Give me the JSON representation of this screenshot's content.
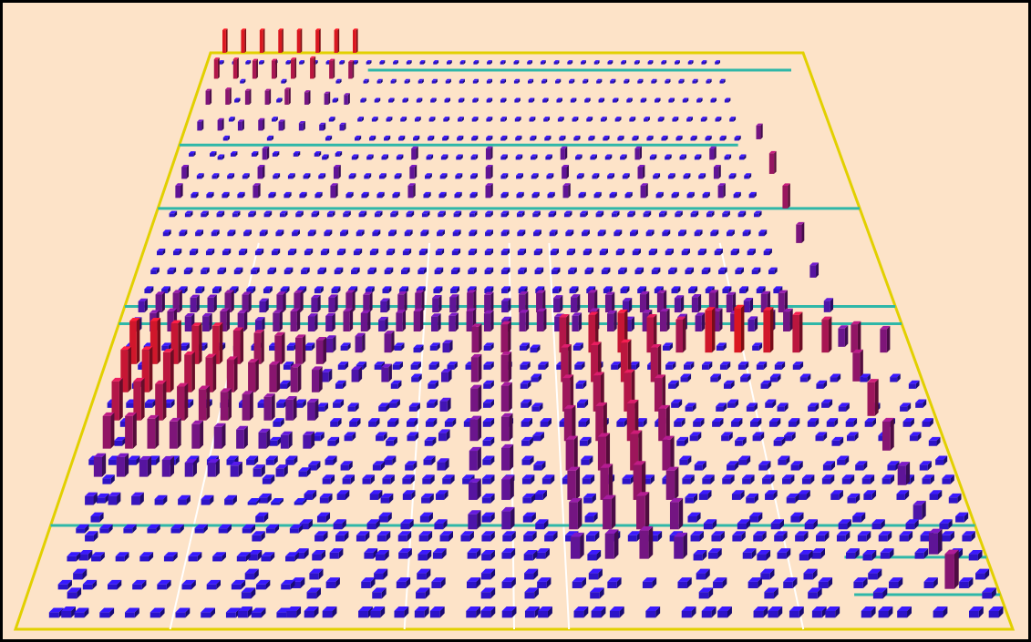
{
  "scene": {
    "background_color": "#FDE3C8",
    "frame_color": "#000000",
    "border_color": "#E2D000",
    "divider_color": "#FFFFFF",
    "separator_color": "#2FB7A8",
    "bar_low_color": "#1A14E6",
    "bar_high_color": "#F01818",
    "blocks": [
      {
        "name": "bottom-left-cluster",
        "columns": 10,
        "rows": 10,
        "heights": [
          [
            0.9,
            0.9,
            0.85,
            0.8,
            0.8,
            0.7,
            0.65,
            0.6,
            0.55,
            0.5
          ],
          [
            0.85,
            0.85,
            0.8,
            0.75,
            0.7,
            0.65,
            0.6,
            0.55,
            0.5,
            0.45
          ],
          [
            0.75,
            0.75,
            0.7,
            0.65,
            0.6,
            0.55,
            0.5,
            0.45,
            0.4,
            0.35
          ],
          [
            0.6,
            0.6,
            0.55,
            0.5,
            0.45,
            0.4,
            0.35,
            0.3,
            0.25,
            0.25
          ],
          [
            0.35,
            0.35,
            0.3,
            0.3,
            0.25,
            0.25,
            0.2,
            0.15,
            0.15,
            0.1
          ],
          [
            0.15,
            0.15,
            0.15,
            0.1,
            0.1,
            0.1,
            0.1,
            0.05,
            0.05,
            0.05
          ],
          [
            0.08,
            0.08,
            0.08,
            0.08,
            0.08,
            0.08,
            0.08,
            0.08,
            0.08,
            0.08
          ],
          [
            0.08,
            0.08,
            0.08,
            0.08,
            0.08,
            0.08,
            0.08,
            0.08,
            0.08,
            0.08
          ],
          [
            0.08,
            0.08,
            0.08,
            0.08,
            0.08,
            0.08,
            0.08,
            0.08,
            0.08,
            0.08
          ],
          [
            0.08,
            0.08,
            0.08,
            0.08,
            0.08,
            0.08,
            0.08,
            0.08,
            0.08,
            0.08
          ]
        ]
      },
      {
        "name": "bottom-middle-band",
        "columns": 20,
        "rows": 10,
        "heights": [
          [
            0.3,
            0.35,
            0.4,
            0.1,
            0.2,
            0.55,
            0.6,
            0.1,
            0.75,
            0.8,
            0.85,
            0.75,
            0.7,
            0.9,
            0.95,
            0.9,
            0.8,
            0.7,
            0.6,
            0.5
          ],
          [
            0.2,
            0.25,
            0.3,
            0.1,
            0.2,
            0.5,
            0.55,
            0.1,
            0.7,
            0.75,
            0.8,
            0.7,
            0.1,
            0.1,
            0.1,
            0.1,
            0.1,
            0.1,
            0.1,
            0.1
          ],
          [
            0.1,
            0.1,
            0.1,
            0.1,
            0.2,
            0.45,
            0.5,
            0.1,
            0.65,
            0.7,
            0.75,
            0.65,
            0.1,
            0.1,
            0.1,
            0.1,
            0.1,
            0.1,
            0.1,
            0.1
          ],
          [
            0.1,
            0.1,
            0.1,
            0.1,
            0.15,
            0.4,
            0.45,
            0.1,
            0.6,
            0.65,
            0.7,
            0.6,
            0.1,
            0.1,
            0.1,
            0.1,
            0.1,
            0.1,
            0.1,
            0.1
          ],
          [
            0.1,
            0.1,
            0.1,
            0.1,
            0.15,
            0.35,
            0.4,
            0.1,
            0.55,
            0.6,
            0.65,
            0.55,
            0.1,
            0.1,
            0.1,
            0.1,
            0.1,
            0.1,
            0.1,
            0.1
          ],
          [
            0.1,
            0.1,
            0.1,
            0.1,
            0.1,
            0.3,
            0.35,
            0.1,
            0.5,
            0.55,
            0.6,
            0.5,
            0.1,
            0.1,
            0.1,
            0.1,
            0.1,
            0.1,
            0.1,
            0.1
          ],
          [
            0.1,
            0.1,
            0.1,
            0.1,
            0.1,
            0.25,
            0.3,
            0.1,
            0.45,
            0.5,
            0.55,
            0.45,
            0.1,
            0.1,
            0.1,
            0.1,
            0.1,
            0.1,
            0.1,
            0.1
          ],
          [
            0.1,
            0.1,
            0.1,
            0.1,
            0.1,
            0.1,
            0.1,
            0.1,
            0.35,
            0.4,
            0.45,
            0.35,
            0.1,
            0.1,
            0.1,
            0.1,
            0.1,
            0.1,
            0.1,
            0.1
          ],
          [
            0.1,
            0.1,
            0.1,
            0.1,
            0.1,
            0.1,
            0.1,
            0.1,
            0.1,
            0.1,
            0.1,
            0.1,
            0.1,
            0.1,
            0.1,
            0.1,
            0.1,
            0.1,
            0.1,
            0.1
          ],
          [
            0.1,
            0.1,
            0.1,
            0.1,
            0.1,
            0.1,
            0.1,
            0.1,
            0.1,
            0.1,
            0.1,
            0.1,
            0.1,
            0.1,
            0.1,
            0.1,
            0.1,
            0.1,
            0.1,
            0.1
          ]
        ]
      },
      {
        "name": "top-left-cluster",
        "columns": 8,
        "rows": 5,
        "heights": [
          [
            0.95,
            0.95,
            0.95,
            0.95,
            0.95,
            0.95,
            0.95,
            0.95
          ],
          [
            0.75,
            0.75,
            0.7,
            0.7,
            0.75,
            0.8,
            0.7,
            0.65
          ],
          [
            0.5,
            0.55,
            0.5,
            0.5,
            0.55,
            0.45,
            0.4,
            0.35
          ],
          [
            0.3,
            0.35,
            0.3,
            0.35,
            0.3,
            0.25,
            0.2,
            0.2
          ],
          [
            0.1,
            0.1,
            0.1,
            0.1,
            0.1,
            0.1,
            0.1,
            0.1
          ]
        ]
      }
    ]
  }
}
